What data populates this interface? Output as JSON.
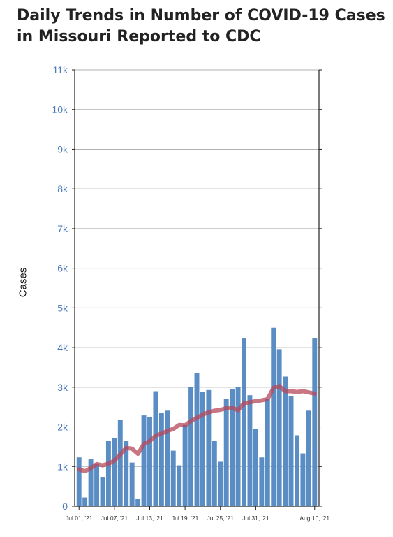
{
  "chart_data": {
    "type": "bar",
    "title": "Daily Trends in Number of COVID-19 Cases in Missouri Reported to CDC",
    "ylabel": "Cases",
    "xlabel": "",
    "ylim": [
      0,
      11000
    ],
    "y_ticks": [
      "0",
      "1k",
      "2k",
      "3k",
      "4k",
      "5k",
      "6k",
      "7k",
      "8k",
      "9k",
      "10k",
      "11k"
    ],
    "x_tick_labels": [
      "Jul 01, '21",
      "Jul 07, '21",
      "Jul 13, '21",
      "Jul 19, '21",
      "Jul 25, '21",
      "Jul 31, '21",
      "Aug 10, '21"
    ],
    "x_tick_dates": [
      "2021-07-01",
      "2021-07-07",
      "2021-07-13",
      "2021-07-19",
      "2021-07-25",
      "2021-07-31",
      "2021-08-10"
    ],
    "grid": true,
    "bar_color": "#5b8dc5",
    "line_color": "#b5485a",
    "dates": [
      "2021-07-01",
      "2021-07-02",
      "2021-07-03",
      "2021-07-04",
      "2021-07-05",
      "2021-07-06",
      "2021-07-07",
      "2021-07-08",
      "2021-07-09",
      "2021-07-10",
      "2021-07-11",
      "2021-07-12",
      "2021-07-13",
      "2021-07-14",
      "2021-07-15",
      "2021-07-16",
      "2021-07-17",
      "2021-07-18",
      "2021-07-19",
      "2021-07-20",
      "2021-07-21",
      "2021-07-22",
      "2021-07-23",
      "2021-07-24",
      "2021-07-25",
      "2021-07-26",
      "2021-07-27",
      "2021-07-28",
      "2021-07-29",
      "2021-07-30",
      "2021-07-31",
      "2021-08-01",
      "2021-08-02",
      "2021-08-03",
      "2021-08-04",
      "2021-08-05",
      "2021-08-06",
      "2021-08-07",
      "2021-08-08",
      "2021-08-09",
      "2021-08-10"
    ],
    "series": [
      {
        "type": "bar",
        "values": [
          1230,
          220,
          1180,
          1080,
          740,
          1640,
          1720,
          2180,
          1650,
          1100,
          190,
          2290,
          2250,
          2900,
          2350,
          2410,
          1400,
          1030,
          2050,
          3000,
          3360,
          2890,
          2930,
          1640,
          1120,
          2700,
          2960,
          3000,
          4230,
          2800,
          1950,
          1230,
          2700,
          4500,
          3960,
          3270,
          2770,
          1790,
          1330,
          2410,
          4230
        ]
      },
      {
        "type": "line",
        "values": [
          930,
          880,
          960,
          1060,
          1030,
          1070,
          1150,
          1300,
          1470,
          1450,
          1320,
          1570,
          1640,
          1780,
          1830,
          1900,
          1950,
          2050,
          2040,
          2150,
          2230,
          2310,
          2370,
          2410,
          2430,
          2470,
          2480,
          2420,
          2600,
          2620,
          2650,
          2670,
          2700,
          2980,
          3030,
          2900,
          2900,
          2880,
          2900,
          2870,
          2840
        ]
      }
    ]
  }
}
